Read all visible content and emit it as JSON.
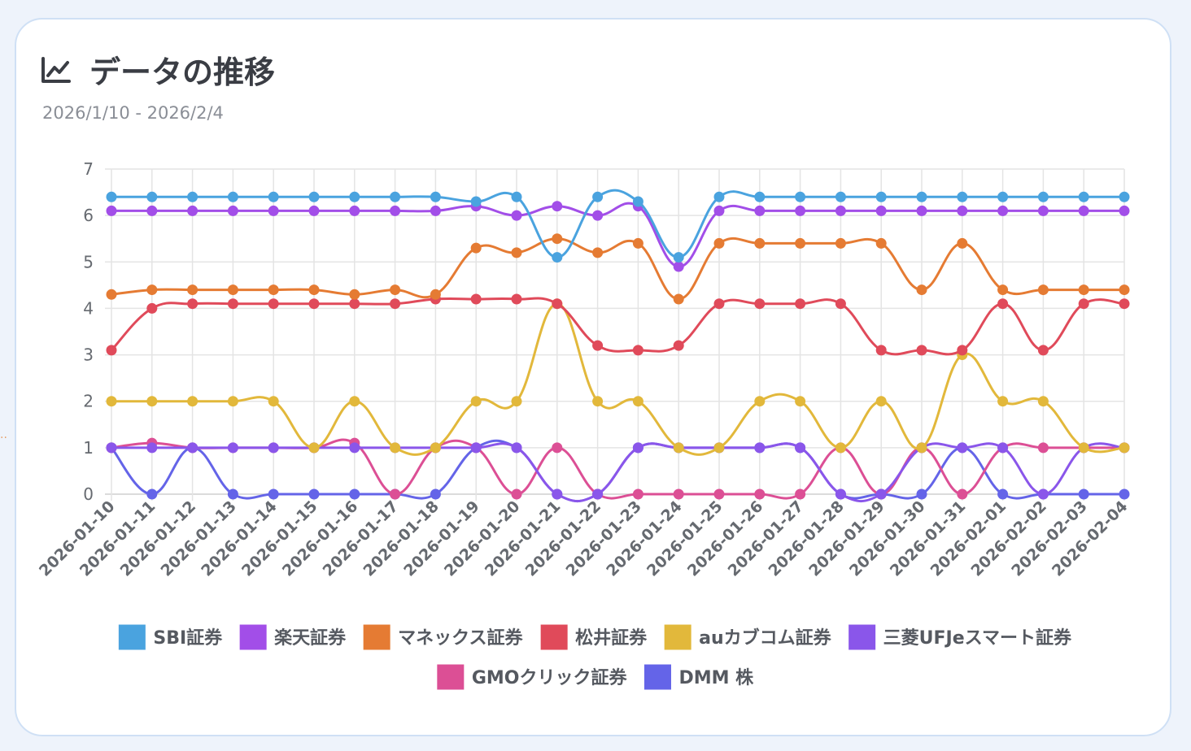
{
  "card": {
    "title": "データの推移",
    "title_icon": "line-chart-icon",
    "subtitle": "2026/1/10 - 2026/2/4"
  },
  "chart_data": {
    "type": "line",
    "title": "データの推移",
    "subtitle": "2026/1/10 - 2026/2/4",
    "xlabel": "",
    "ylabel": "",
    "ylim": [
      0,
      7
    ],
    "yticks": [
      0,
      1,
      2,
      3,
      4,
      5,
      6,
      7
    ],
    "grid": true,
    "legend_position": "bottom",
    "categories": [
      "2026-01-10",
      "2026-01-11",
      "2026-01-12",
      "2026-01-13",
      "2026-01-14",
      "2026-01-15",
      "2026-01-16",
      "2026-01-17",
      "2026-01-18",
      "2026-01-19",
      "2026-01-20",
      "2026-01-21",
      "2026-01-22",
      "2026-01-23",
      "2026-01-24",
      "2026-01-25",
      "2026-01-26",
      "2026-01-27",
      "2026-01-28",
      "2026-01-29",
      "2026-01-30",
      "2026-01-31",
      "2026-02-01",
      "2026-02-02",
      "2026-02-03",
      "2026-02-04"
    ],
    "series": [
      {
        "name": "SBI証券",
        "color": "#4aa3df",
        "values": [
          6.4,
          6.4,
          6.4,
          6.4,
          6.4,
          6.4,
          6.4,
          6.4,
          6.4,
          6.3,
          6.4,
          5.1,
          6.4,
          6.3,
          5.1,
          6.4,
          6.4,
          6.4,
          6.4,
          6.4,
          6.4,
          6.4,
          6.4,
          6.4,
          6.4,
          6.4
        ]
      },
      {
        "name": "楽天証券",
        "color": "#a24ee8",
        "values": [
          6.1,
          6.1,
          6.1,
          6.1,
          6.1,
          6.1,
          6.1,
          6.1,
          6.1,
          6.2,
          6.0,
          6.2,
          6.0,
          6.2,
          4.9,
          6.1,
          6.1,
          6.1,
          6.1,
          6.1,
          6.1,
          6.1,
          6.1,
          6.1,
          6.1,
          6.1
        ]
      },
      {
        "name": "マネックス証券",
        "color": "#e57b33",
        "values": [
          4.3,
          4.4,
          4.4,
          4.4,
          4.4,
          4.4,
          4.3,
          4.4,
          4.3,
          5.3,
          5.2,
          5.5,
          5.2,
          5.4,
          4.2,
          5.4,
          5.4,
          5.4,
          5.4,
          5.4,
          4.4,
          5.4,
          4.4,
          4.4,
          4.4,
          4.4
        ]
      },
      {
        "name": "松井証券",
        "color": "#e04a5a",
        "values": [
          3.1,
          4.0,
          4.1,
          4.1,
          4.1,
          4.1,
          4.1,
          4.1,
          4.2,
          4.2,
          4.2,
          4.1,
          3.2,
          3.1,
          3.2,
          4.1,
          4.1,
          4.1,
          4.1,
          3.1,
          3.1,
          3.1,
          4.1,
          3.1,
          4.1,
          4.1
        ]
      },
      {
        "name": "auカブコム証券",
        "color": "#e2b83b",
        "values": [
          2,
          2,
          2,
          2,
          2,
          1,
          2,
          1,
          1,
          2,
          2,
          4.1,
          2,
          2,
          1,
          1,
          2,
          2,
          1,
          2,
          1,
          3,
          2,
          2,
          1,
          1
        ]
      },
      {
        "name": "三菱UFJeスマート証券",
        "color": "#8a56ea",
        "values": [
          1,
          1,
          1,
          1,
          1,
          1,
          1,
          1,
          1,
          1,
          1,
          0,
          0,
          1,
          1,
          1,
          1,
          1,
          0,
          0,
          1,
          1,
          1,
          0,
          1,
          1
        ]
      },
      {
        "name": "GMOクリック証券",
        "color": "#dc4f95",
        "values": [
          1,
          1.1,
          1,
          1,
          1,
          1,
          1.1,
          0,
          1,
          1,
          0,
          1,
          0,
          0,
          0,
          0,
          0,
          0,
          1,
          0,
          1,
          0,
          1,
          1,
          1,
          1
        ]
      },
      {
        "name": "DMM 株",
        "color": "#6464e8",
        "values": [
          1,
          0,
          1,
          0,
          0,
          0,
          0,
          0,
          0,
          1,
          1,
          0,
          0,
          1,
          1,
          1,
          1,
          1,
          0,
          0,
          0,
          1,
          0,
          0,
          0,
          0
        ]
      }
    ]
  }
}
